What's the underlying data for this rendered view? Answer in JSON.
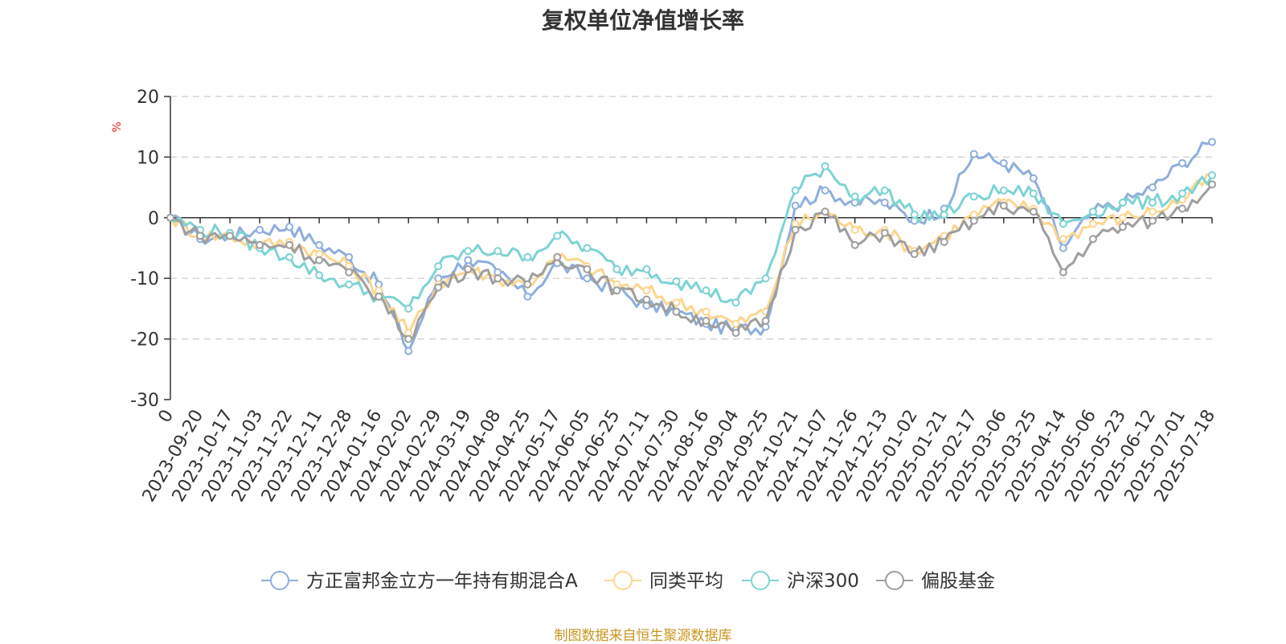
{
  "source_note": "制图数据来自恒生聚源数据库",
  "chart_data": {
    "type": "line",
    "title": "复权单位净值增长率",
    "ylabel": "%",
    "ylim": [
      -30,
      20
    ],
    "yticks": [
      20,
      10,
      0,
      -10,
      -20,
      -30
    ],
    "grid": true,
    "legend_position": "bottom",
    "x_tick_labels": [
      "0",
      "2023-09-20",
      "2023-10-17",
      "2023-11-03",
      "2023-11-22",
      "2023-12-11",
      "2023-12-28",
      "2024-01-16",
      "2024-02-02",
      "2024-02-29",
      "2024-03-19",
      "2024-04-08",
      "2024-04-25",
      "2024-05-17",
      "2024-06-05",
      "2024-06-25",
      "2024-07-11",
      "2024-07-30",
      "2024-08-16",
      "2024-09-04",
      "2024-09-25",
      "2024-10-21",
      "2024-11-07",
      "2024-11-26",
      "2024-12-13",
      "2025-01-02",
      "2025-01-21",
      "2025-02-17",
      "2025-03-06",
      "2025-03-25",
      "2025-04-14",
      "2025-05-06",
      "2025-05-23",
      "2025-06-12",
      "2025-07-01",
      "2025-07-18"
    ],
    "series": [
      {
        "name": "方正富邦金立方一年持有期混合A",
        "color": "#8eaedc",
        "values": [
          0,
          -3.5,
          -3,
          -2,
          -1.5,
          -4.5,
          -6.5,
          -11,
          -22,
          -10,
          -7,
          -9,
          -13,
          -7.5,
          -10,
          -12,
          -14.5,
          -15.5,
          -17.5,
          -18.5,
          -18,
          2,
          4.5,
          2.5,
          2.5,
          -0.5,
          1.5,
          10.5,
          9,
          6.5,
          -5,
          1,
          2.5,
          5,
          9,
          12.5
        ]
      },
      {
        "name": "同类平均",
        "color": "#fcd58e",
        "values": [
          0,
          -3,
          -3,
          -4.5,
          -4,
          -6,
          -8,
          -12,
          -19,
          -11,
          -8.5,
          -10,
          -11,
          -6.5,
          -8,
          -11,
          -12,
          -14,
          -15.5,
          -17.5,
          -15.5,
          -1,
          1,
          -2,
          -2,
          -5.5,
          -3,
          0.5,
          2.5,
          1.5,
          -3.5,
          -1,
          0,
          1,
          3,
          7
        ]
      },
      {
        "name": "沪深300",
        "color": "#7dd3d3",
        "values": [
          0,
          -2,
          -2.5,
          -5,
          -6.5,
          -9.5,
          -11,
          -13,
          -15,
          -8,
          -5.5,
          -5.5,
          -6.5,
          -3,
          -5,
          -8.5,
          -8.5,
          -10.5,
          -12,
          -14,
          -10,
          4.5,
          8.5,
          3.5,
          4.5,
          0.5,
          0.5,
          3.5,
          4.5,
          4,
          -1,
          1,
          2.5,
          2.5,
          4,
          7
        ]
      },
      {
        "name": "偏股基金",
        "color": "#9e9e9e",
        "values": [
          0,
          -3,
          -3,
          -4.5,
          -4.5,
          -7,
          -9,
          -13,
          -20,
          -11.5,
          -8.5,
          -10,
          -11,
          -6.5,
          -8.5,
          -12,
          -13.5,
          -15.5,
          -17,
          -19,
          -17,
          -2,
          1,
          -4.5,
          -2.5,
          -6,
          -4,
          -0.5,
          2,
          1,
          -9,
          -3.5,
          -1.5,
          -0.5,
          1.5,
          5.5
        ]
      }
    ]
  }
}
